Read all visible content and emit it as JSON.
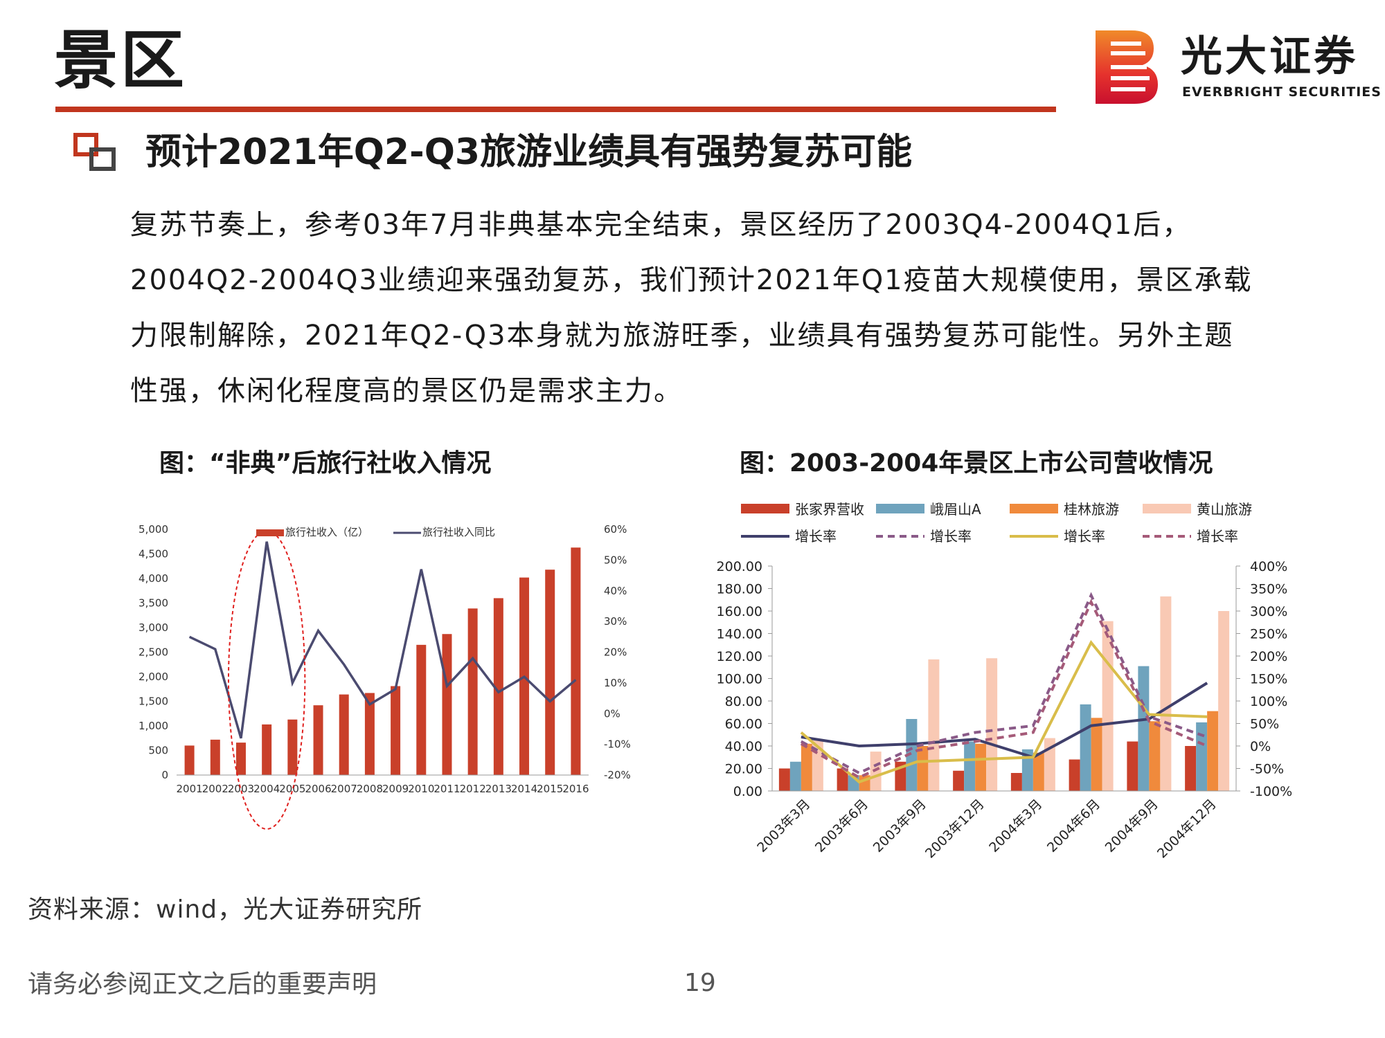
{
  "header": {
    "title": "景区",
    "logo_cn": "光大证券",
    "logo_en": "EVERBRIGHT SECURITIES"
  },
  "section": {
    "heading": "预计2021年Q2-Q3旅游业绩具有强势复苏可能",
    "body_lines": [
      "复苏节奏上，参考03年7月非典基本完全结束，景区经历了2003Q4-2004Q1后，",
      "2004Q2-2004Q3业绩迎来强劲复苏，我们预计2021年Q1疫苗大规模使用，景区承载",
      "力限制解除，2021年Q2-Q3本身就为旅游旺季，业绩具有强势复苏可能性。另外主题",
      "性强，休闲化程度高的景区仍是需求主力。"
    ]
  },
  "colors": {
    "brand_red": "#c1361e",
    "bar_red": "#c9402a",
    "line_navy": "#4b4b70",
    "zjj": "#c9402a",
    "emei": "#6fa3bd",
    "guilin": "#f08a3c",
    "huangshan": "#f9c9b4",
    "zjj_line": "#3f3f6b",
    "emei_line": "#8a5a88",
    "guilin_line": "#d9bd4a",
    "huangshan_line": "#a55a78"
  },
  "chart_data": [
    {
      "type": "bar",
      "title": "图：“非典”后旅行社收入情况",
      "categories": [
        "2001",
        "2002",
        "2003",
        "2004",
        "2005",
        "2006",
        "2007",
        "2008",
        "2009",
        "2010",
        "2011",
        "2012",
        "2013",
        "2014",
        "2015",
        "2016"
      ],
      "series": [
        {
          "name": "旅行社收入（亿）",
          "type": "bar",
          "axis": "left",
          "values": [
            600,
            720,
            660,
            1030,
            1130,
            1420,
            1640,
            1670,
            1810,
            2650,
            2870,
            3390,
            3600,
            4020,
            4180,
            4630
          ]
        },
        {
          "name": "旅行社收入同比",
          "type": "line",
          "axis": "right",
          "values": [
            25,
            21,
            -8,
            56,
            10,
            27,
            16,
            3,
            8,
            47,
            9,
            18,
            7,
            12,
            4,
            11
          ]
        }
      ],
      "ylim": [
        0,
        5000
      ],
      "yticks": [
        "5,000",
        "4,500",
        "4,000",
        "3,500",
        "3,000",
        "2,500",
        "2,000",
        "1,500",
        "1,000",
        "500",
        "0"
      ],
      "y2lim": [
        -20,
        60
      ],
      "y2ticks": [
        "60%",
        "50%",
        "40%",
        "30%",
        "20%",
        "10%",
        "0%",
        "-10%",
        "-20%"
      ],
      "highlight": [
        "2003",
        "2005"
      ],
      "legend": "top"
    },
    {
      "type": "bar",
      "title": "图：2003-2004年景区上市公司营收情况",
      "categories": [
        "2003年3月",
        "2003年6月",
        "2003年9月",
        "2003年12月",
        "2004年3月",
        "2004年6月",
        "2004年9月",
        "2004年12月"
      ],
      "series": [
        {
          "name": "张家界营收",
          "type": "bar",
          "axis": "left",
          "values": [
            20,
            20,
            26,
            18,
            16,
            28,
            44,
            40
          ]
        },
        {
          "name": "峨眉山A",
          "type": "bar",
          "axis": "left",
          "values": [
            26,
            14,
            64,
            44,
            37,
            77,
            111,
            61
          ]
        },
        {
          "name": "桂林旅游",
          "type": "bar",
          "axis": "left",
          "values": [
            42,
            14,
            40,
            42,
            34,
            65,
            62,
            71
          ]
        },
        {
          "name": "黄山旅游",
          "type": "bar",
          "axis": "left",
          "values": [
            45,
            35,
            117,
            118,
            47,
            151,
            173,
            160
          ]
        },
        {
          "name": "增长率",
          "type": "line",
          "axis": "right",
          "style": "solid",
          "values": [
            20,
            0,
            5,
            15,
            -25,
            45,
            60,
            140
          ]
        },
        {
          "name": "增长率",
          "type": "line",
          "axis": "right",
          "style": "dashed",
          "values": [
            10,
            -60,
            0,
            30,
            45,
            335,
            65,
            20
          ]
        },
        {
          "name": "增长率",
          "type": "line",
          "axis": "right",
          "style": "solid",
          "values": [
            30,
            -80,
            -35,
            -30,
            -25,
            230,
            70,
            65
          ]
        },
        {
          "name": "增长率",
          "type": "line",
          "axis": "right",
          "style": "dashed",
          "values": [
            5,
            -70,
            -10,
            10,
            30,
            320,
            55,
            0
          ]
        }
      ],
      "ylim": [
        0,
        200
      ],
      "yticks": [
        "200.00",
        "180.00",
        "160.00",
        "140.00",
        "120.00",
        "100.00",
        "80.00",
        "60.00",
        "40.00",
        "20.00",
        "0.00"
      ],
      "y2lim": [
        -100,
        400
      ],
      "y2ticks": [
        "400%",
        "350%",
        "300%",
        "250%",
        "200%",
        "150%",
        "100%",
        "50%",
        "0%",
        "-50%",
        "-100%"
      ],
      "legend": "top"
    }
  ],
  "footer": {
    "source": "资料来源：wind，光大证券研究所",
    "disclaimer": "请务必参阅正文之后的重要声明",
    "page_number": "19"
  }
}
